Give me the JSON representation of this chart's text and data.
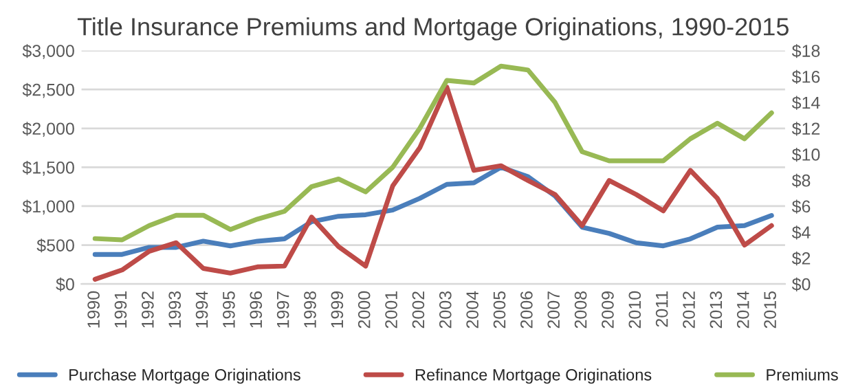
{
  "chart_data": {
    "type": "line",
    "title": "Title Insurance Premiums and Mortgage Originations, 1990-2015",
    "categories": [
      "1990",
      "1991",
      "1992",
      "1993",
      "1994",
      "1995",
      "1996",
      "1997",
      "1998",
      "1999",
      "2000",
      "2001",
      "2002",
      "2003",
      "2004",
      "2005",
      "2006",
      "2007",
      "2008",
      "2009",
      "2010",
      "2011",
      "2012",
      "2013",
      "2014",
      "2015"
    ],
    "series": [
      {
        "name": "Purchase Mortgage Originations",
        "color": "#4a7ebb",
        "values": [
          380,
          380,
          470,
          470,
          550,
          490,
          550,
          580,
          800,
          870,
          890,
          950,
          1100,
          1280,
          1300,
          1500,
          1380,
          1130,
          730,
          650,
          530,
          490,
          580,
          730,
          750,
          880
        ]
      },
      {
        "name": "Refinance Mortgage Originations",
        "color": "#be4b48",
        "values": [
          60,
          180,
          420,
          530,
          200,
          140,
          220,
          230,
          860,
          480,
          230,
          1260,
          1750,
          2530,
          1460,
          1520,
          1330,
          1150,
          750,
          1330,
          1150,
          940,
          1460,
          1100,
          500,
          750
        ]
      },
      {
        "name": "Premiums",
        "color": "#98b954",
        "axis": "y2",
        "values": [
          3.5,
          3.4,
          4.5,
          5.3,
          5.3,
          4.2,
          5.0,
          5.6,
          7.5,
          8.1,
          7.1,
          9.0,
          12.0,
          15.7,
          15.5,
          16.8,
          16.5,
          14.0,
          10.2,
          9.5,
          9.5,
          9.5,
          11.2,
          12.4,
          11.2,
          13.2
        ]
      }
    ],
    "ylim": [
      0,
      3000
    ],
    "yticks": [
      {
        "value": 0,
        "label": "$0"
      },
      {
        "value": 500,
        "label": "$500"
      },
      {
        "value": 1000,
        "label": "$1,000"
      },
      {
        "value": 1500,
        "label": "$1,500"
      },
      {
        "value": 2000,
        "label": "$2,000"
      },
      {
        "value": 2500,
        "label": "$2,500"
      },
      {
        "value": 3000,
        "label": "$3,000"
      }
    ],
    "y2lim": [
      0,
      18
    ],
    "y2ticks": [
      {
        "value": 0,
        "label": "$0"
      },
      {
        "value": 2,
        "label": "$2"
      },
      {
        "value": 4,
        "label": "$4"
      },
      {
        "value": 6,
        "label": "$6"
      },
      {
        "value": 8,
        "label": "$8"
      },
      {
        "value": 10,
        "label": "$10"
      },
      {
        "value": 12,
        "label": "$12"
      },
      {
        "value": 14,
        "label": "$14"
      },
      {
        "value": 16,
        "label": "$16"
      },
      {
        "value": 18,
        "label": "$18"
      }
    ],
    "grid": "y",
    "legend": "bottom",
    "marker": "none",
    "line_style": "solid"
  }
}
